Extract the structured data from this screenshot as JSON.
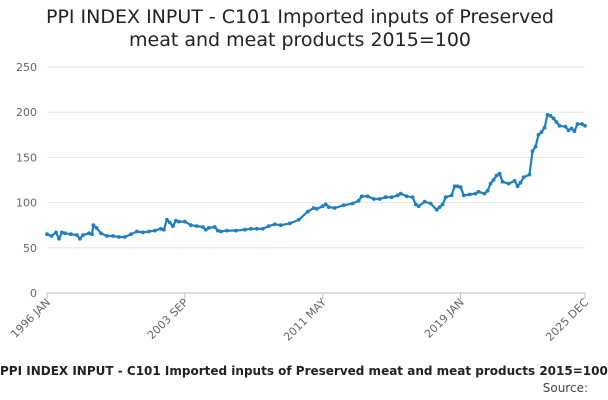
{
  "chart_data": {
    "type": "line",
    "title_lines": [
      "PPI INDEX INPUT - C101 Imported inputs of Preserved",
      "meat and meat products 2015=100"
    ],
    "footer_title": "PPI INDEX INPUT - C101 Imported inputs of Preserved meat and meat products 2015=100",
    "source_label": "Source:",
    "x_range": [
      1996.0,
      2025.917
    ],
    "ylim": [
      0,
      250
    ],
    "y_ticks": [
      0,
      50,
      100,
      150,
      200,
      250
    ],
    "y_tick_labels": [
      "0",
      "50",
      "100",
      "150",
      "200",
      "250"
    ],
    "x_tick_labels": [
      {
        "label": "1996 JAN",
        "t": 1996.0
      },
      {
        "label": "2003 SEP",
        "t": 2003.667
      },
      {
        "label": "2011 MAY",
        "t": 2011.333
      },
      {
        "label": "2019 JAN",
        "t": 2019.0
      },
      {
        "label": "2025 DEC",
        "t": 2025.917
      }
    ],
    "grid": true,
    "series": [
      {
        "name": "PPI INDEX INPUT - C101",
        "color": "#1f7fc0",
        "points": [
          [
            1996.0,
            65
          ],
          [
            1996.25,
            63
          ],
          [
            1996.5,
            67
          ],
          [
            1996.67,
            60
          ],
          [
            1996.83,
            67
          ],
          [
            1997.0,
            66
          ],
          [
            1997.33,
            65
          ],
          [
            1997.67,
            64
          ],
          [
            1997.83,
            60
          ],
          [
            1998.0,
            64
          ],
          [
            1998.33,
            66
          ],
          [
            1998.5,
            65
          ],
          [
            1998.58,
            75
          ],
          [
            1998.75,
            72
          ],
          [
            1999.0,
            66
          ],
          [
            1999.33,
            63
          ],
          [
            1999.67,
            63
          ],
          [
            2000.0,
            62
          ],
          [
            2000.33,
            62
          ],
          [
            2000.67,
            65
          ],
          [
            2001.0,
            68
          ],
          [
            2001.33,
            67
          ],
          [
            2001.67,
            68
          ],
          [
            2002.0,
            69
          ],
          [
            2002.33,
            71
          ],
          [
            2002.5,
            70
          ],
          [
            2002.67,
            81
          ],
          [
            2002.83,
            78
          ],
          [
            2003.0,
            74
          ],
          [
            2003.17,
            80
          ],
          [
            2003.33,
            79
          ],
          [
            2003.67,
            79
          ],
          [
            2004.0,
            75
          ],
          [
            2004.33,
            74
          ],
          [
            2004.67,
            73
          ],
          [
            2004.83,
            70
          ],
          [
            2005.0,
            72
          ],
          [
            2005.33,
            73
          ],
          [
            2005.5,
            69
          ],
          [
            2005.67,
            68
          ],
          [
            2006.0,
            69
          ],
          [
            2006.5,
            69
          ],
          [
            2007.0,
            70
          ],
          [
            2007.33,
            71
          ],
          [
            2007.67,
            71
          ],
          [
            2008.0,
            71
          ],
          [
            2008.33,
            74
          ],
          [
            2008.67,
            76
          ],
          [
            2009.0,
            75
          ],
          [
            2009.5,
            77
          ],
          [
            2010.0,
            81
          ],
          [
            2010.5,
            90
          ],
          [
            2010.83,
            94
          ],
          [
            2011.0,
            93
          ],
          [
            2011.33,
            96
          ],
          [
            2011.5,
            98
          ],
          [
            2011.67,
            95
          ],
          [
            2012.0,
            94
          ],
          [
            2012.5,
            97
          ],
          [
            2013.0,
            99
          ],
          [
            2013.33,
            102
          ],
          [
            2013.5,
            107
          ],
          [
            2013.83,
            107
          ],
          [
            2014.17,
            104
          ],
          [
            2014.5,
            104
          ],
          [
            2014.83,
            106
          ],
          [
            2015.17,
            106
          ],
          [
            2015.5,
            108
          ],
          [
            2015.67,
            110
          ],
          [
            2016.0,
            107
          ],
          [
            2016.33,
            106
          ],
          [
            2016.5,
            98
          ],
          [
            2016.67,
            96
          ],
          [
            2017.0,
            101
          ],
          [
            2017.33,
            99
          ],
          [
            2017.67,
            92
          ],
          [
            2017.83,
            95
          ],
          [
            2018.0,
            98
          ],
          [
            2018.17,
            106
          ],
          [
            2018.5,
            108
          ],
          [
            2018.67,
            118
          ],
          [
            2018.83,
            118
          ],
          [
            2019.0,
            117
          ],
          [
            2019.17,
            108
          ],
          [
            2019.5,
            109
          ],
          [
            2019.83,
            110
          ],
          [
            2020.0,
            112
          ],
          [
            2020.33,
            110
          ],
          [
            2020.5,
            113
          ],
          [
            2020.67,
            121
          ],
          [
            2020.83,
            125
          ],
          [
            2021.0,
            130
          ],
          [
            2021.17,
            132
          ],
          [
            2021.33,
            123
          ],
          [
            2021.67,
            121
          ],
          [
            2022.0,
            124
          ],
          [
            2022.17,
            118
          ],
          [
            2022.33,
            122
          ],
          [
            2022.5,
            128
          ],
          [
            2022.83,
            131
          ],
          [
            2023.0,
            157
          ],
          [
            2023.17,
            162
          ],
          [
            2023.33,
            175
          ],
          [
            2023.5,
            178
          ],
          [
            2023.67,
            183
          ],
          [
            2023.83,
            197
          ],
          [
            2024.0,
            196
          ],
          [
            2024.17,
            193
          ],
          [
            2024.33,
            189
          ],
          [
            2024.5,
            185
          ],
          [
            2024.83,
            184
          ],
          [
            2025.0,
            180
          ],
          [
            2025.17,
            182
          ],
          [
            2025.33,
            179
          ],
          [
            2025.5,
            187
          ],
          [
            2025.75,
            187
          ],
          [
            2025.917,
            185
          ]
        ]
      }
    ]
  }
}
